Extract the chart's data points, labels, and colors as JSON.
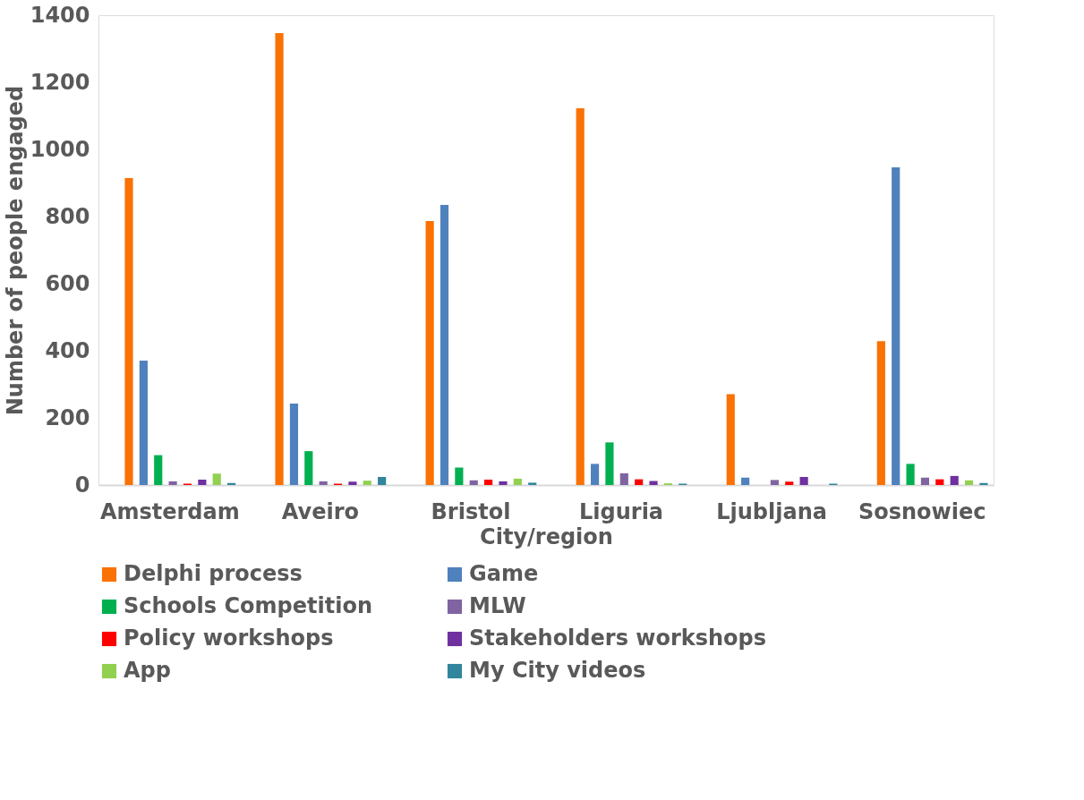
{
  "chart_data": {
    "type": "bar",
    "xlabel": "City/region",
    "ylabel": "Number of people engaged",
    "categories": [
      "Amsterdam",
      "Aveiro",
      "Bristol",
      "Liguria",
      "Ljubljana",
      "Sosnowiec"
    ],
    "series": [
      {
        "name": "Delphi process",
        "color": "#fa7204",
        "values": [
          915,
          1347,
          787,
          1123,
          271,
          429
        ]
      },
      {
        "name": "Game",
        "color": "#4f81bd",
        "values": [
          371,
          243,
          835,
          63,
          22,
          947
        ]
      },
      {
        "name": "Schools Competition",
        "color": "#00b050",
        "values": [
          89,
          101,
          52,
          127,
          0,
          63
        ]
      },
      {
        "name": "MLW",
        "color": "#8064a2",
        "values": [
          11,
          11,
          14,
          35,
          15,
          22
        ]
      },
      {
        "name": "Policy workshops",
        "color": "#ff0000",
        "values": [
          4,
          4,
          16,
          17,
          10,
          17
        ]
      },
      {
        "name": "Stakeholders workshops",
        "color": "#7030a0",
        "values": [
          16,
          10,
          11,
          12,
          24,
          27
        ]
      },
      {
        "name": "App",
        "color": "#92d050",
        "values": [
          34,
          13,
          19,
          5,
          0,
          14
        ]
      },
      {
        "name": "My City videos",
        "color": "#31859c",
        "values": [
          6,
          24,
          7,
          4,
          4,
          6
        ]
      }
    ],
    "ylim": [
      0,
      1400
    ],
    "yticks": [
      0,
      200,
      400,
      600,
      800,
      1000,
      1200,
      1400
    ],
    "grid": false,
    "legend": "bottom"
  }
}
